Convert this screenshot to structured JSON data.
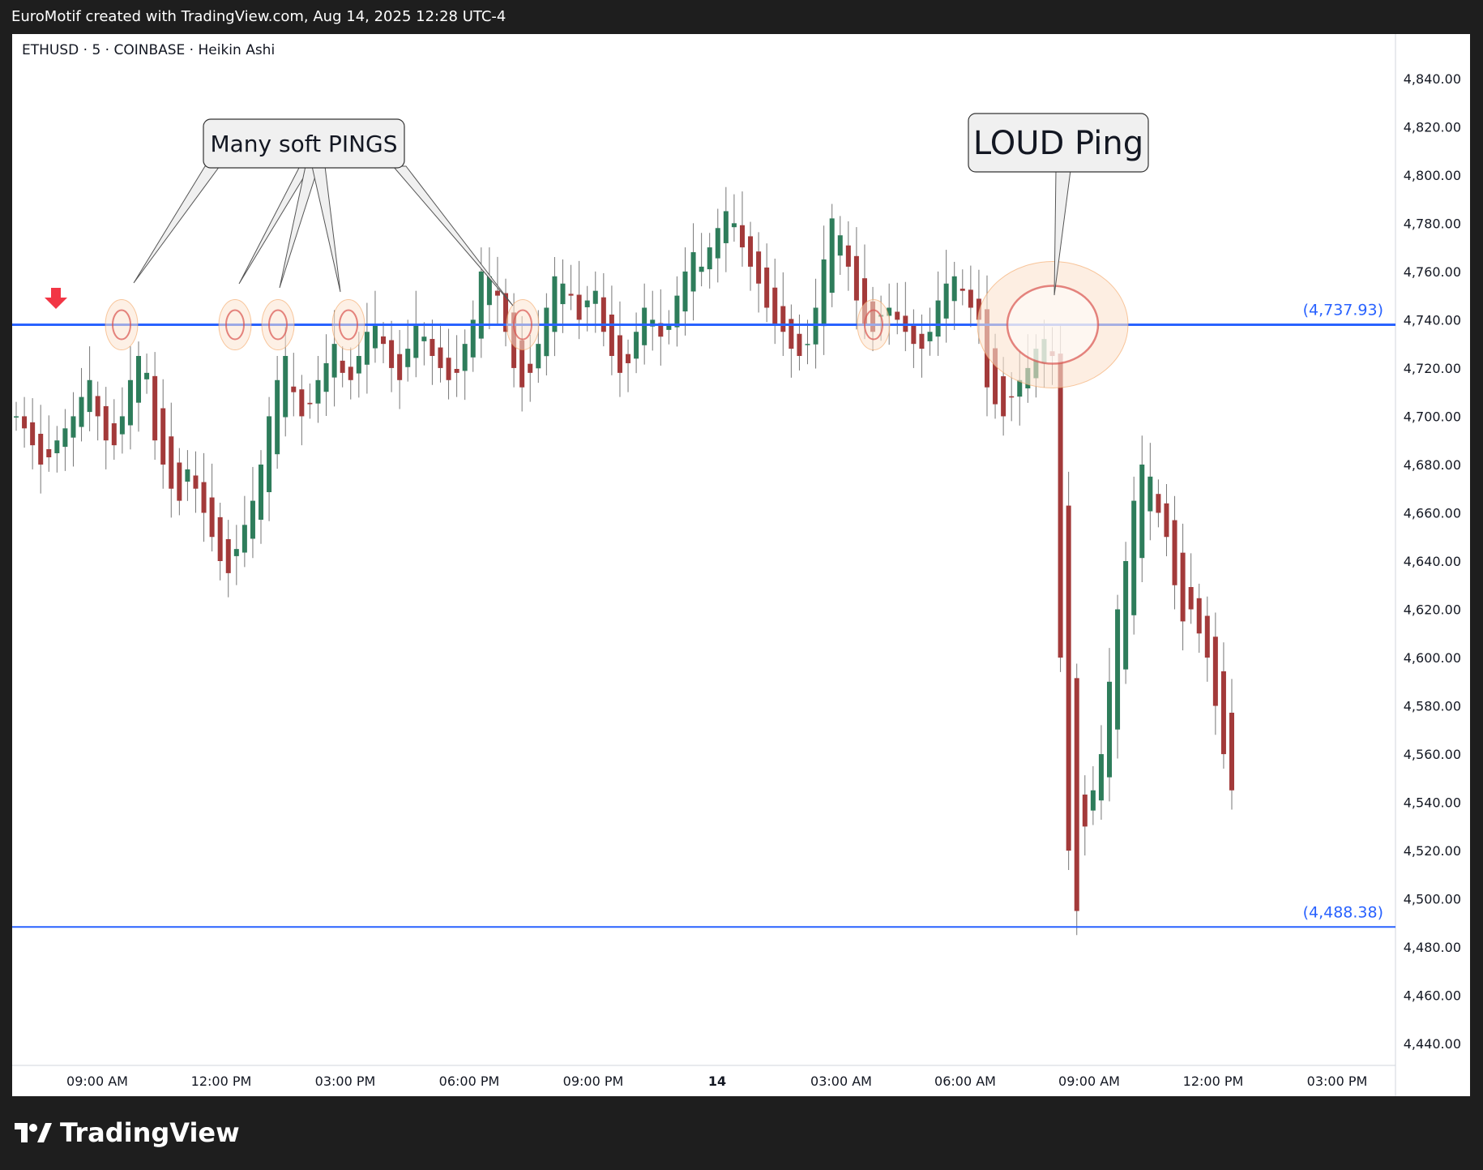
{
  "header": {
    "attribution": "EuroMotif created with TradingView.com, Aug 14, 2025 12:28 UTC-4"
  },
  "symbol_line": "ETHUSD · 5 · COINBASE · Heikin Ashi",
  "brand": {
    "name": "TradingView"
  },
  "colors": {
    "up": "#2e7d5b",
    "down": "#a33a3a",
    "level": "#2962ff",
    "level_label": "#2962ff",
    "ping_fill": "#fbe3cf",
    "ping_ring": "#f4a460",
    "marker": "#f23645"
  },
  "chart_data": {
    "type": "candlestick",
    "style": "Heikin Ashi",
    "symbol": "ETHUSD",
    "interval": "5",
    "exchange": "COINBASE",
    "ylim": [
      4430,
      4850
    ],
    "y_ticks": [
      "4,840.00",
      "4,820.00",
      "4,800.00",
      "4,780.00",
      "4,760.00",
      "4,740.00",
      "4,720.00",
      "4,700.00",
      "4,680.00",
      "4,660.00",
      "4,640.00",
      "4,620.00",
      "4,600.00",
      "4,580.00",
      "4,560.00",
      "4,540.00",
      "4,520.00",
      "4,500.00",
      "4,480.00",
      "4,460.00",
      "4,440.00"
    ],
    "y_tick_values": [
      4840,
      4820,
      4800,
      4780,
      4760,
      4740,
      4720,
      4700,
      4680,
      4660,
      4640,
      4620,
      4600,
      4580,
      4560,
      4540,
      4520,
      4500,
      4480,
      4460,
      4440
    ],
    "x_ticks": [
      "09:00 AM",
      "12:00 PM",
      "03:00 PM",
      "06:00 PM",
      "09:00 PM",
      "14",
      "03:00 AM",
      "06:00 AM",
      "09:00 AM",
      "12:00 PM",
      "03:00 PM"
    ],
    "levels": [
      {
        "value": 4737.93,
        "label": "(4,737.93)",
        "bold": true
      },
      {
        "value": 4488.38,
        "label": "(4,488.38)",
        "bold": false
      }
    ],
    "annotations": [
      {
        "text": "Many soft PINGS",
        "type": "callout"
      },
      {
        "text": "LOUD Ping",
        "type": "callout"
      }
    ],
    "series_close": [
      4700,
      4695,
      4688,
      4680,
      4683,
      4690,
      4695,
      4700,
      4708,
      4715,
      4700,
      4690,
      4688,
      4700,
      4715,
      4725,
      4718,
      4690,
      4680,
      4670,
      4665,
      4678,
      4670,
      4660,
      4650,
      4640,
      4635,
      4645,
      4655,
      4665,
      4680,
      4700,
      4715,
      4725,
      4710,
      4700,
      4705,
      4715,
      4722,
      4730,
      4718,
      4715,
      4725,
      4735,
      4738,
      4730,
      4720,
      4715,
      4728,
      4738,
      4733,
      4725,
      4720,
      4715,
      4718,
      4730,
      4740,
      4760,
      4758,
      4750,
      4735,
      4720,
      4712,
      4718,
      4730,
      4745,
      4758,
      4755,
      4750,
      4740,
      4748,
      4752,
      4735,
      4725,
      4718,
      4722,
      4735,
      4745,
      4740,
      4733,
      4738,
      4750,
      4760,
      4768,
      4762,
      4770,
      4778,
      4785,
      4780,
      4770,
      4762,
      4755,
      4745,
      4738,
      4735,
      4728,
      4725,
      4730,
      4745,
      4765,
      4782,
      4775,
      4762,
      4748,
      4738,
      4735,
      4742,
      4745,
      4740,
      4735,
      4730,
      4728,
      4735,
      4748,
      4755,
      4758,
      4752,
      4745,
      4740,
      4712,
      4705,
      4700,
      4708,
      4715,
      4720,
      4728,
      4732,
      4725,
      4600,
      4520,
      4495,
      4530,
      4545,
      4560,
      4590,
      4620,
      4640,
      4665,
      4680,
      4675,
      4660,
      4650,
      4630,
      4615,
      4620,
      4610,
      4600,
      4580,
      4560,
      4545
    ]
  }
}
